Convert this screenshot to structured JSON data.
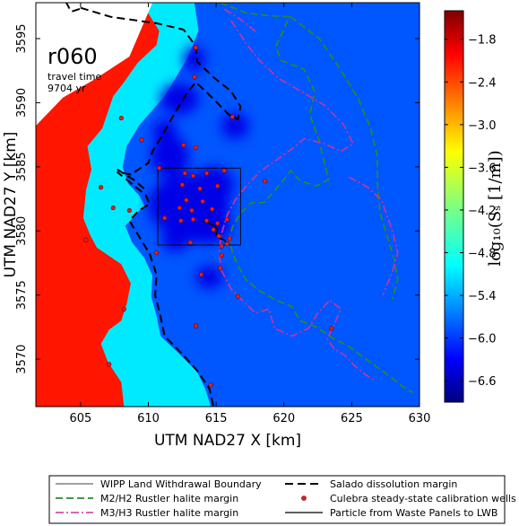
{
  "chart_data": {
    "type": "heatmap",
    "run_label": "r060",
    "annotation_line1": "travel time",
    "annotation_line2": "9704 yr",
    "xlabel": "UTM NAD27 X [km]",
    "ylabel": "UTM NAD27 Y [km]",
    "xlim": [
      601.7,
      630.0
    ],
    "ylim": [
      3566.3,
      3597.8
    ],
    "x_ticks": [
      605,
      610,
      615,
      620,
      625,
      630
    ],
    "y_ticks": [
      3570,
      3575,
      3580,
      3585,
      3590,
      3595
    ],
    "colorbar": {
      "label": "log₁₀(Sₛ [1/m])",
      "range": [
        -6.9,
        -1.4
      ],
      "ticks": [
        -1.8,
        -2.4,
        -3.0,
        -3.6,
        -4.2,
        -4.8,
        -5.4,
        -6.0,
        -6.6
      ],
      "tick_labels": [
        "−1.8",
        "−2.4",
        "−3.0",
        "−3.6",
        "−4.2",
        "−4.8",
        "−5.4",
        "−6.0",
        "−6.6"
      ],
      "colormap": "jet"
    },
    "field_levels": {
      "background": -5.75,
      "low_zone": -6.35,
      "halite_zone": -4.95,
      "orange_zone": -2.2
    },
    "wipp_box": {
      "x": [
        610.7,
        616.8
      ],
      "y": [
        3578.9,
        3584.9
      ]
    },
    "wells": [
      [
        613.5,
        3594.3
      ],
      [
        613.4,
        3592.0
      ],
      [
        608.0,
        3588.8
      ],
      [
        616.2,
        3588.9
      ],
      [
        609.5,
        3587.1
      ],
      [
        612.6,
        3586.7
      ],
      [
        613.5,
        3586.5
      ],
      [
        610.8,
        3584.9
      ],
      [
        612.7,
        3584.5
      ],
      [
        613.3,
        3584.3
      ],
      [
        614.3,
        3584.5
      ],
      [
        615.6,
        3584.7
      ],
      [
        618.6,
        3583.9
      ],
      [
        606.5,
        3583.4
      ],
      [
        612.5,
        3583.6
      ],
      [
        613.8,
        3583.3
      ],
      [
        615.1,
        3583.5
      ],
      [
        612.8,
        3582.4
      ],
      [
        614.0,
        3582.3
      ],
      [
        612.3,
        3581.8
      ],
      [
        613.2,
        3581.6
      ],
      [
        614.7,
        3581.7
      ],
      [
        607.4,
        3581.8
      ],
      [
        608.6,
        3581.6
      ],
      [
        611.2,
        3581.0
      ],
      [
        612.4,
        3580.8
      ],
      [
        613.3,
        3580.9
      ],
      [
        614.3,
        3580.8
      ],
      [
        615.1,
        3580.6
      ],
      [
        615.8,
        3580.9
      ],
      [
        614.8,
        3580.1
      ],
      [
        615.2,
        3579.6
      ],
      [
        616.0,
        3579.4
      ],
      [
        615.4,
        3578.8
      ],
      [
        613.1,
        3579.1
      ],
      [
        610.6,
        3578.3
      ],
      [
        605.4,
        3579.3
      ],
      [
        615.4,
        3578.1
      ],
      [
        615.3,
        3577.1
      ],
      [
        613.9,
        3576.6
      ],
      [
        616.6,
        3574.9
      ],
      [
        608.2,
        3573.9
      ],
      [
        613.5,
        3572.6
      ],
      [
        623.5,
        3572.4
      ],
      [
        607.1,
        3569.6
      ],
      [
        614.6,
        3568.0
      ],
      [
        615.8,
        3579.0
      ]
    ],
    "particle_path": [
      [
        613.9,
        3580.7
      ],
      [
        614.3,
        3580.8
      ],
      [
        614.6,
        3580.5
      ],
      [
        614.9,
        3580.4
      ],
      [
        615.1,
        3580.1
      ],
      [
        615.0,
        3579.7
      ],
      [
        615.3,
        3579.4
      ],
      [
        615.6,
        3579.3
      ],
      [
        615.9,
        3578.9
      ]
    ],
    "legend": {
      "placement": "bottom",
      "entries": [
        {
          "label": "WIPP Land Withdrawal Boundary",
          "style": "thin-solid",
          "color": "#000000"
        },
        {
          "label": "Salado dissolution margin",
          "style": "thick-dash",
          "color": "#000000"
        },
        {
          "label": "M2/H2 Rustler halite margin",
          "style": "dash",
          "color": "#2a8a2a"
        },
        {
          "label": "Culebra steady-state calibration wells",
          "style": "marker",
          "color": "#e02020"
        },
        {
          "label": "M3/H3 Rustler halite margin",
          "style": "dash-dot",
          "color": "#cc3399"
        },
        {
          "label": "Particle from Waste Panels to LWB",
          "style": "solid",
          "color": "#000000"
        }
      ]
    }
  }
}
